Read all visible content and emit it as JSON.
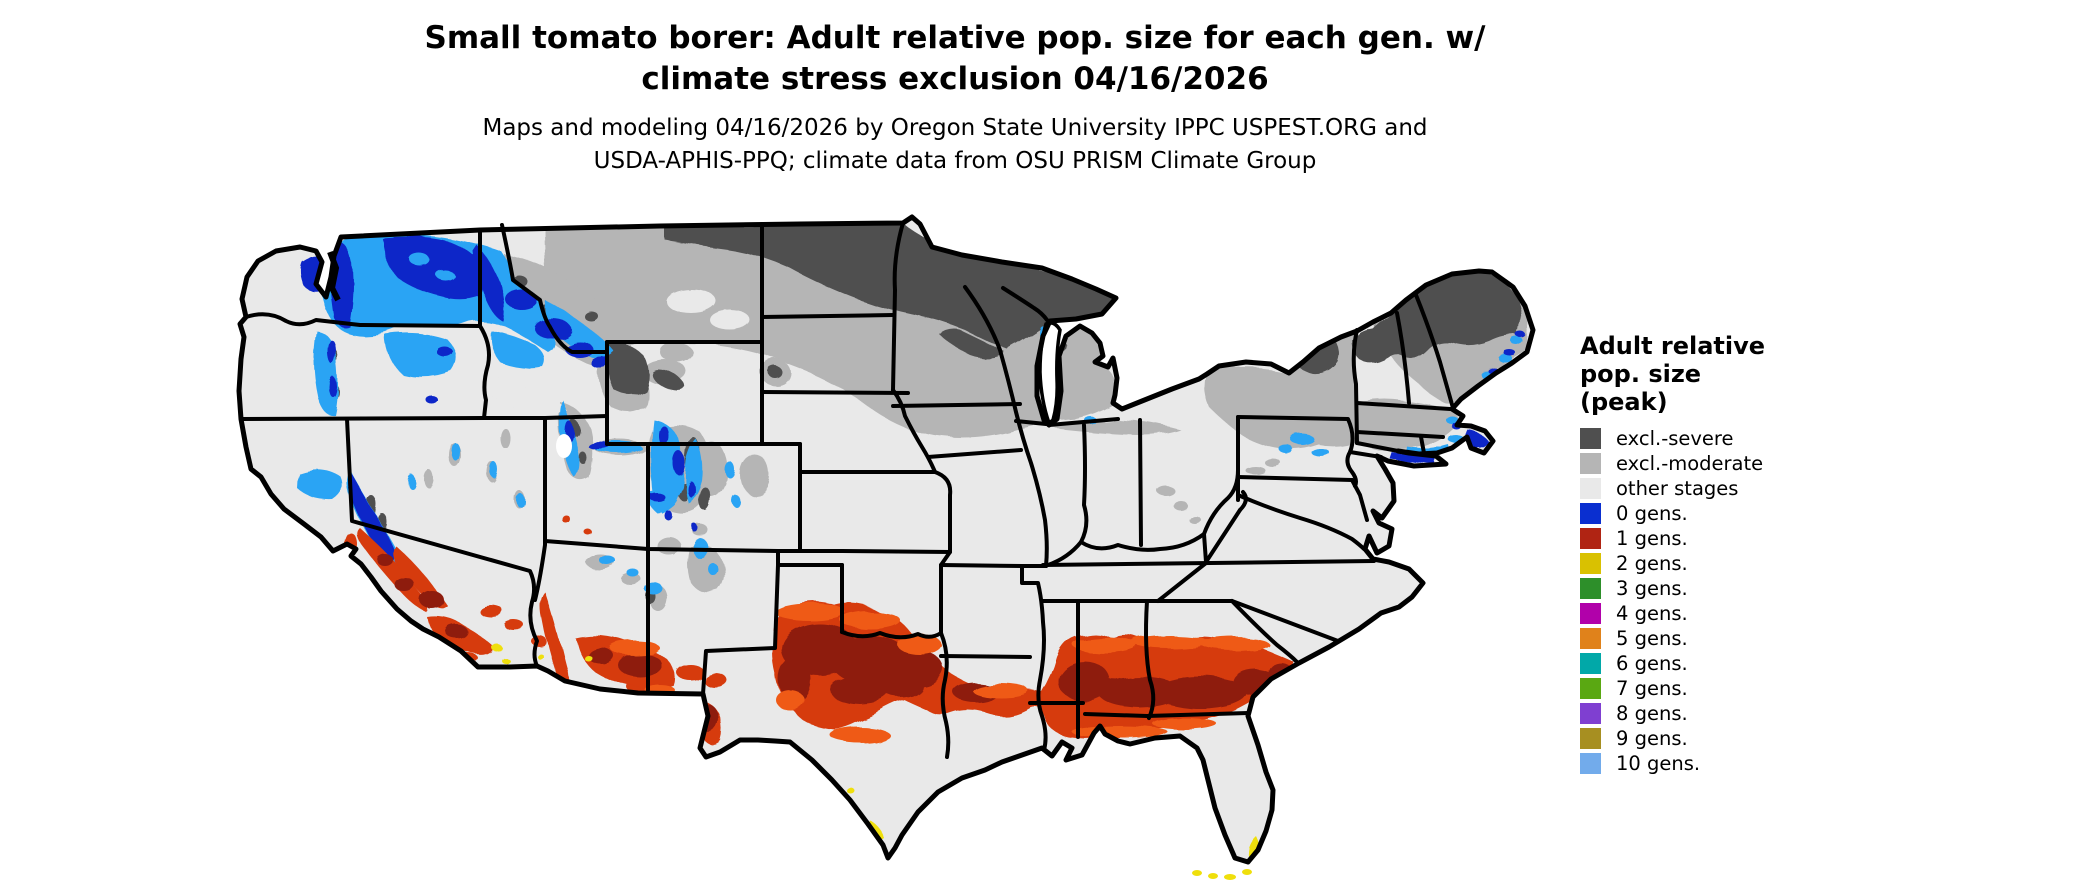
{
  "header": {
    "title_line1": "Small tomato borer: Adult relative pop. size for each gen. w/",
    "title_line2": "climate stress exclusion 04/16/2026",
    "subtitle_line1": "Maps and modeling 04/16/2026 by Oregon State University IPPC USPEST.ORG and",
    "subtitle_line2": "USDA-APHIS-PPQ; climate data from OSU PRISM Climate Group",
    "map_date": "04/16/2026"
  },
  "legend": {
    "title": "Adult relative\npop. size\n(peak)",
    "items": [
      {
        "label": "excl.-severe",
        "color": "#4f4f4f"
      },
      {
        "label": "excl.-moderate",
        "color": "#b5b5b5"
      },
      {
        "label": "other stages",
        "color": "#e9e9e9"
      },
      {
        "label": "0 gens.",
        "color": "#0a2fd0"
      },
      {
        "label": "1 gens.",
        "color": "#b02413"
      },
      {
        "label": "2 gens.",
        "color": "#d9c101"
      },
      {
        "label": "3 gens.",
        "color": "#2d8f2a"
      },
      {
        "label": "4 gens.",
        "color": "#b101aa"
      },
      {
        "label": "5 gens.",
        "color": "#e0821b"
      },
      {
        "label": "6 gens.",
        "color": "#01a8a8"
      },
      {
        "label": "7 gens.",
        "color": "#5aa812"
      },
      {
        "label": "8 gens.",
        "color": "#7f3fd1"
      },
      {
        "label": "9 gens.",
        "color": "#a78f21"
      },
      {
        "label": "10 gens.",
        "color": "#72abeb"
      }
    ]
  },
  "map": {
    "type": "choropleth-raster of contiguous United States",
    "palette": {
      "land_other_stages": "#e9e9e9",
      "excl_severe": "#4f4f4f",
      "excl_moderate": "#b5b5b5",
      "gen0_navy": "#0a28c8",
      "gen0_cyan": "#2aa4f4",
      "gen1_red": "#d63a10",
      "gen1_maroon": "#8e1c0a",
      "gen1_bright": "#ef5a14",
      "gen2_yellow": "#efdf0c",
      "state_border": "#000000"
    },
    "regions": [
      {
        "category": "excl.-severe",
        "areas": "northern Plains and upper Great Lakes (eastern Montana/North Dakota through Minnesota, northern Wisconsin, upper Michigan); Adirondacks and northern New England; high Rockies patches (Yellowstone, Colorado peaks)"
      },
      {
        "category": "excl.-moderate",
        "areas": "band across Montana, the Dakotas, Iowa, southern Great Lakes states, upstate New York, Pennsylvania, southern New England and coastal Maine; mountain areas of Idaho, Wyoming, Utah, Colorado"
      },
      {
        "category": "other stages",
        "areas": "most of the central, southern and eastern U.S., Great Basin, California valleys, Florida peninsula"
      },
      {
        "category": "0 gens.",
        "areas": "Pacific Northwest (Washington, Oregon Cascades, northern Idaho, western Montana), Sierra Nevada, Rocky Mountain ridges, scattered coastal New England"
      },
      {
        "category": "1 gens.",
        "areas": "southern band from central Texas and southern Oklahoma through Louisiana, Mississippi, Alabama, Georgia to coastal South Carolina and the Florida panhandle; southern California, southern Arizona, southwestern New Mexico"
      },
      {
        "category": "2 gens.",
        "areas": "southern tip of Texas, southeastern Florida coast and the Florida Keys, small desert spots in southeastern California and Arizona"
      }
    ]
  }
}
